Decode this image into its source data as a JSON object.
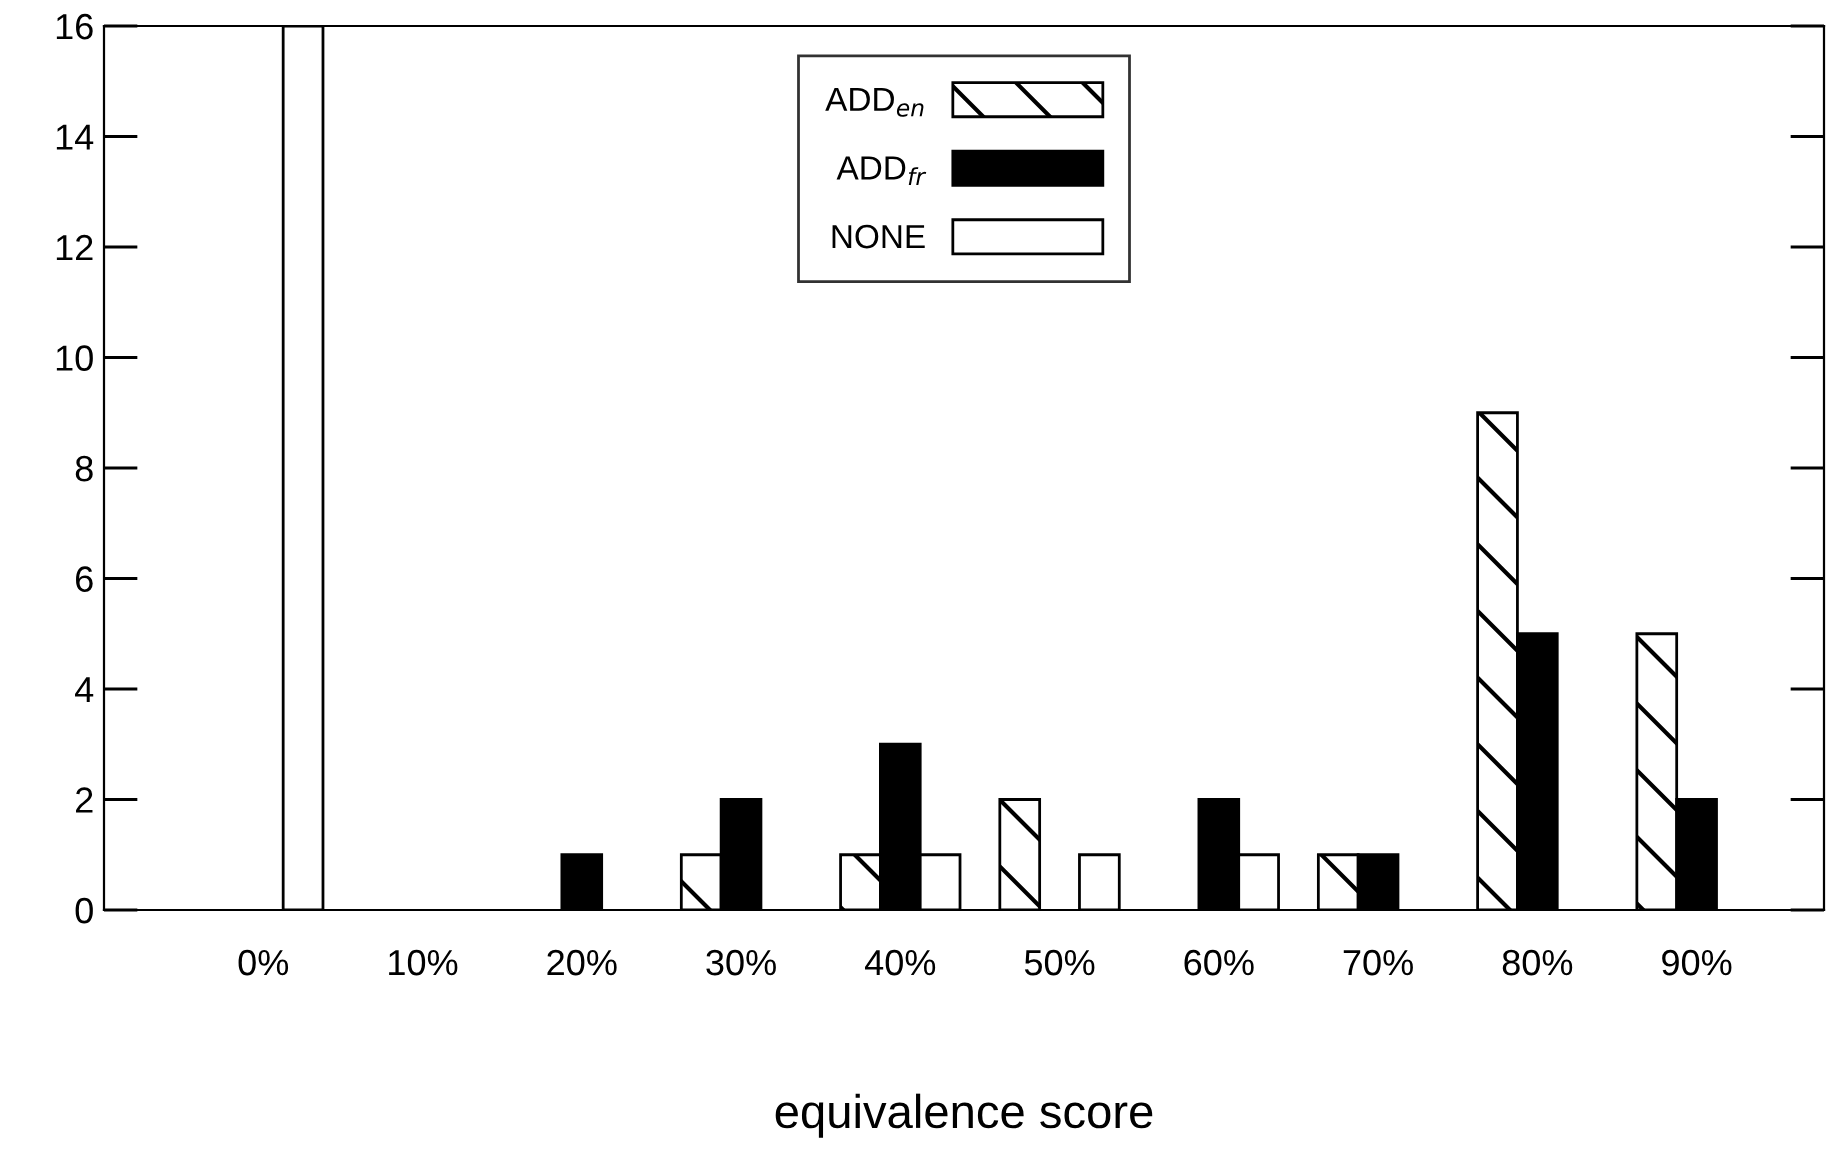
{
  "chart_data": {
    "type": "bar",
    "xlabel": "equivalence score",
    "categories": [
      "0%",
      "10%",
      "20%",
      "30%",
      "40%",
      "50%",
      "60%",
      "70%",
      "80%",
      "90%"
    ],
    "series": [
      {
        "name": "ADD$_{en}$",
        "color": "#ffffff",
        "values": [
          0,
          0,
          0,
          1,
          1,
          2,
          0,
          1,
          9,
          5
        ]
      },
      {
        "name": "ADD$_{fr}$",
        "color": "#000000",
        "values": [
          0,
          0,
          1,
          2,
          3,
          0,
          2,
          1,
          5,
          2
        ]
      },
      {
        "name": "NONE",
        "color": "#ffffff",
        "values": [
          16,
          0,
          0,
          0,
          1,
          1,
          1,
          0,
          0,
          0
        ]
      }
    ],
    "ylim": [
      0,
      16
    ],
    "yticks": [
      0,
      2,
      4,
      6,
      8,
      10,
      12,
      14,
      16
    ],
    "grid": false,
    "legend": "top"
  }
}
